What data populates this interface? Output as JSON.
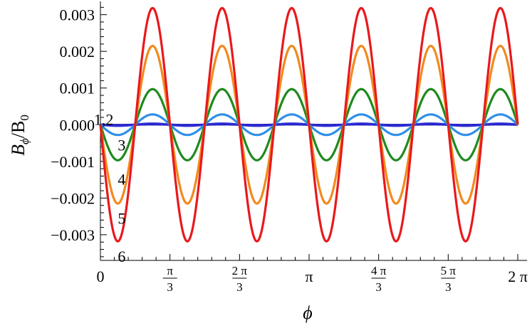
{
  "chart_data": {
    "type": "line",
    "xlabel": "ϕ",
    "ylabel_main": "B",
    "ylabel_sub1": "ϕ",
    "ylabel_mid": "/B",
    "ylabel_sub2": "0",
    "xlim": [
      0,
      6.283185307
    ],
    "ylim": [
      -0.0037,
      0.0034
    ],
    "y_ticks": [
      {
        "value": 0.003,
        "label": "0.003"
      },
      {
        "value": 0.002,
        "label": "0.002"
      },
      {
        "value": 0.001,
        "label": "0.001"
      },
      {
        "value": 0.0,
        "label": "0.000"
      },
      {
        "value": -0.001,
        "label": "−0.001"
      },
      {
        "value": -0.002,
        "label": "−0.002"
      },
      {
        "value": -0.003,
        "label": "−0.003"
      }
    ],
    "x_ticks": [
      {
        "value": 0,
        "label": "0"
      },
      {
        "value": 1.047197551,
        "num": "π",
        "den": "3"
      },
      {
        "value": 2.094395102,
        "num": "2 π",
        "den": "3"
      },
      {
        "value": 3.141592654,
        "label": "π"
      },
      {
        "value": 4.188790205,
        "num": "4 π",
        "den": "3"
      },
      {
        "value": 5.235987756,
        "num": "5 π",
        "den": "3"
      },
      {
        "value": 6.283185307,
        "label": "2 π"
      }
    ],
    "waveform": "−A·sin(6ϕ)",
    "series": [
      {
        "label": "1,2",
        "amplitude": 1e-05,
        "color": "#1a1ab0"
      },
      {
        "label": "1,2",
        "amplitude": 3e-05,
        "color": "#2b2bd6"
      },
      {
        "label": "3",
        "amplitude": 0.00028,
        "color": "#2f8fe8"
      },
      {
        "label": "4",
        "amplitude": 0.00097,
        "color": "#1f8a1f"
      },
      {
        "label": "5",
        "amplitude": 0.00215,
        "color": "#f28a1e"
      },
      {
        "label": "6",
        "amplitude": 0.00318,
        "color": "#e8191c"
      }
    ],
    "curve_labels": [
      {
        "text": "1,2",
        "x": 0.05,
        "y": 0.00015
      },
      {
        "text": "3",
        "x": 0.32,
        "y": -0.00055
      },
      {
        "text": "4",
        "x": 0.32,
        "y": -0.00148
      },
      {
        "text": "5",
        "x": 0.32,
        "y": -0.00255
      },
      {
        "text": "6",
        "x": 0.32,
        "y": -0.00358
      }
    ]
  }
}
